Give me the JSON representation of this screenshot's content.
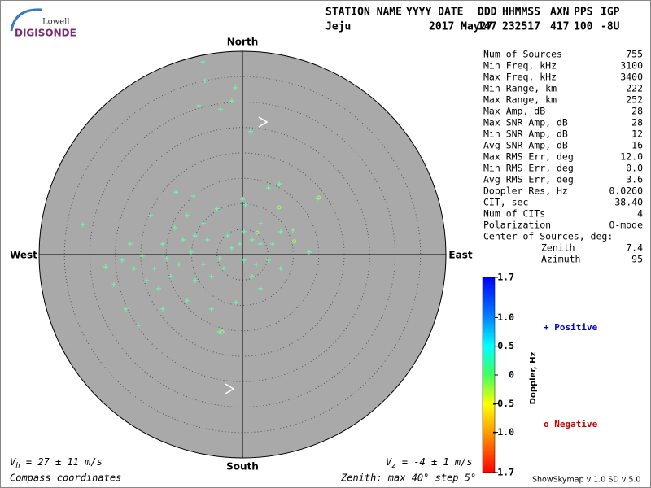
{
  "logo": {
    "top": "Lowell",
    "bottom": "DIGISONDE"
  },
  "header": {
    "labels": [
      "STATION NAME",
      "YYYY DATE",
      "DDD",
      "HHMMSS",
      "AXN",
      "PPS",
      "IGP"
    ],
    "values": [
      "Jeju",
      "2017 May27",
      "147",
      "232517",
      "417",
      "100",
      "-8U"
    ]
  },
  "stats": [
    {
      "label": "Num of Sources",
      "value": "755"
    },
    {
      "label": "Min Freq, kHz",
      "value": "3100"
    },
    {
      "label": "Max Freq, kHz",
      "value": "3400"
    },
    {
      "label": "Min Range, km",
      "value": "222"
    },
    {
      "label": "Max Range, km",
      "value": "252"
    },
    {
      "label": "Max Amp, dB",
      "value": "28"
    },
    {
      "label": "Max SNR Amp, dB",
      "value": "28"
    },
    {
      "label": "Min SNR Amp, dB",
      "value": "12"
    },
    {
      "label": "Avg SNR Amp, dB",
      "value": "16"
    },
    {
      "label": "Max RMS Err, deg",
      "value": "12.0"
    },
    {
      "label": "Min RMS Err, deg",
      "value": "0.0"
    },
    {
      "label": "Avg RMS Err, deg",
      "value": "3.6"
    },
    {
      "label": "Doppler Res, Hz",
      "value": "0.0260"
    },
    {
      "label": "CIT, sec",
      "value": "38.40"
    },
    {
      "label": "Num of CITs",
      "value": "4"
    },
    {
      "label": "Polarization",
      "value": "O-mode"
    }
  ],
  "center_of_sources": {
    "title": "Center of Sources, deg:",
    "rows": [
      {
        "label": "Zenith",
        "value": "7.4"
      },
      {
        "label": "Azimuth",
        "value": "95"
      }
    ]
  },
  "colorbar": {
    "label": "Doppler, Hz",
    "lim": [
      -1.7,
      1.7
    ],
    "ticks": [
      1.7,
      {
        "value": 1,
        "label": "1.0"
      },
      0.5,
      0,
      -0.5,
      {
        "value": -1,
        "label": "-1.0"
      },
      -1.7
    ]
  },
  "footer": {
    "vh": {
      "symbol": "V",
      "sub": "h",
      "text": " = 27 ± 11 m/s"
    },
    "vz": {
      "symbol": "V",
      "sub": "z",
      "text": " = -4 ± 1 m/s"
    },
    "coords": "Compass coordinates",
    "zenith": "Zenith: max 40°  step 5°",
    "version": "ShowSkymap v 1.0   SD v 5.0"
  },
  "chart_data": {
    "type": "skymap",
    "directions": {
      "north": "North",
      "south": "South",
      "west": "West",
      "east": "East"
    },
    "rlim": [
      0,
      40
    ],
    "rticks": [
      5,
      10,
      15,
      20,
      25,
      30,
      35,
      40
    ],
    "series": [
      {
        "name": "Positive",
        "marker": "+",
        "color": "#0000cc",
        "mark_color": "#66ffaa",
        "x": [
          -7.8,
          -7.4,
          -1.4,
          -8.6,
          -4.3,
          -2.1,
          1.6,
          -31.4,
          14.7,
          7.2,
          -13.1,
          0,
          -9.6,
          5.1,
          -5,
          0.6,
          9.9,
          13.1,
          7.5,
          3.5,
          -18.1,
          -22.1,
          -26.9,
          -25.3,
          -22.9,
          -20.5,
          -15.7,
          -10.9,
          -6.1,
          -4.5,
          -1.3,
          3.5,
          1.9,
          5.1,
          0.3,
          -2.1,
          -4.5,
          -7.7,
          -10.1,
          -12.5,
          -14.9,
          -17.3,
          -19.7,
          -21.3,
          -14.1,
          -9.3,
          -6.1,
          -3.7,
          -0.5,
          1.9,
          3.5,
          0.3,
          -2.9,
          -6.9,
          -9.3,
          -11.7,
          -15.7,
          -13.3,
          -7.7,
          -10.9,
          5.9,
          2.7,
          7.5,
          -16.5,
          -18.9,
          -23.7
        ],
        "values": [
          37.9,
          34.2,
          32.8,
          29.3,
          28.6,
          30.2,
          24.2,
          5.9,
          11,
          13.9,
          12.3,
          10.9,
          11.5,
          13.1,
          9,
          9.8,
          4.8,
          0.5,
          4.5,
          6.1,
          7.7,
          2.1,
          -2.4,
          -5.9,
          -10.7,
          -13.9,
          -10.7,
          -9.1,
          -10.7,
          -15.2,
          -9.4,
          -6.7,
          -4.3,
          -1.1,
          -1.1,
          1.3,
          -0.8,
          -1.9,
          0.5,
          -1.9,
          -0.8,
          -2.7,
          -0.3,
          -2.7,
          -4.3,
          -5.1,
          -4.3,
          -2.7,
          2.1,
          2.9,
          2.1,
          4.5,
          3.7,
          2.9,
          3.7,
          2.9,
          2.1,
          5.3,
          6.1,
          7.7,
          2.1,
          -1.9,
          -2.7,
          -6.7,
          -5.1,
          -1.1
        ]
      },
      {
        "name": "Negative",
        "marker": "o",
        "color": "#cc0000",
        "mark_color": "#99ff66",
        "x": [
          7.2,
          10.2,
          15.0,
          -4.0,
          2.9
        ],
        "values": [
          9.3,
          2.6,
          11.2,
          -15.2,
          4.3
        ]
      }
    ]
  }
}
